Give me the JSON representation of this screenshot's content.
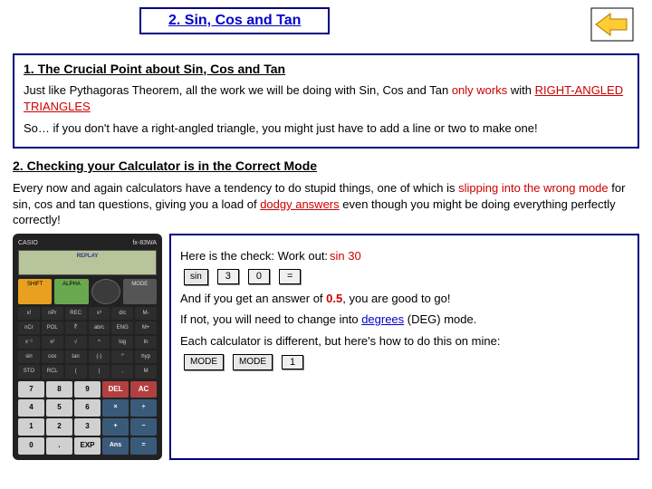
{
  "header": {
    "title": "2. Sin, Cos and Tan"
  },
  "section1": {
    "heading": "1. The Crucial Point about Sin, Cos and Tan",
    "p1a": "Just like Pythagoras Theorem, all the work we will be doing with Sin, Cos and Tan ",
    "p1b": "only works",
    "p1c": " with ",
    "p1d": "RIGHT-ANGLED TRIANGLES",
    "p2": "So… if you don't have a right-angled triangle, you might just have to add a line or two to make one!"
  },
  "section2": {
    "heading": "2. Checking your Calculator is in the Correct Mode",
    "p1a": "Every now and again calculators have a tendency to do stupid things, one of which is ",
    "p1b": "slipping into the wrong mode",
    "p1c": " for sin, cos and tan questions, giving you a load of ",
    "p1d": "dodgy answers",
    "p1e": " even though you might be doing everything perfectly correctly!"
  },
  "checkbox": {
    "line1a": "Here is the check:  Work out: ",
    "line1b": "sin 30",
    "keys": {
      "sin": "sin",
      "k3": "3",
      "k0": "0",
      "eq": "="
    },
    "line2a": "And if you get an answer of ",
    "line2b": "0.5",
    "line2c": ", you are good to go!",
    "line3a": "If not, you will need to change into ",
    "line3b": "degrees",
    "line3c": " (DEG) mode.",
    "line4": "Each calculator is different, but here's how to do this on mine:",
    "keys2": {
      "mode1": "MODE",
      "mode2": "MODE",
      "k1": "1"
    }
  },
  "calculator": {
    "brand": "CASIO",
    "model": "fx-83WA",
    "screen_label": "REPLAY",
    "buttons_top": {
      "shift": "SHIFT",
      "alpha": "ALPHA",
      "mode": "MODE"
    },
    "small_rows": [
      [
        "x!",
        "nPr",
        "REC",
        "x³",
        "d/c",
        "M-"
      ],
      [
        "nCr",
        "POL",
        "∛",
        "ab/c",
        "ENG",
        "M+"
      ],
      [
        "x⁻¹",
        "x²",
        "√",
        "^",
        "log",
        "ln"
      ],
      [
        "sin",
        "cos",
        "tan",
        "(-)",
        "°'",
        "hyp"
      ],
      [
        "STO",
        "RCL",
        "(",
        ")",
        ",",
        "M"
      ]
    ],
    "del": "DEL",
    "ac": "AC",
    "num_rows": [
      [
        "7",
        "8",
        "9",
        "DEL",
        "AC"
      ],
      [
        "4",
        "5",
        "6",
        "×",
        "÷"
      ],
      [
        "1",
        "2",
        "3",
        "+",
        "−"
      ],
      [
        "0",
        ".",
        "EXP",
        "Ans",
        "="
      ]
    ]
  },
  "colors": {
    "border": "#000080",
    "red": "#cc0000",
    "link": "#0000cc"
  }
}
